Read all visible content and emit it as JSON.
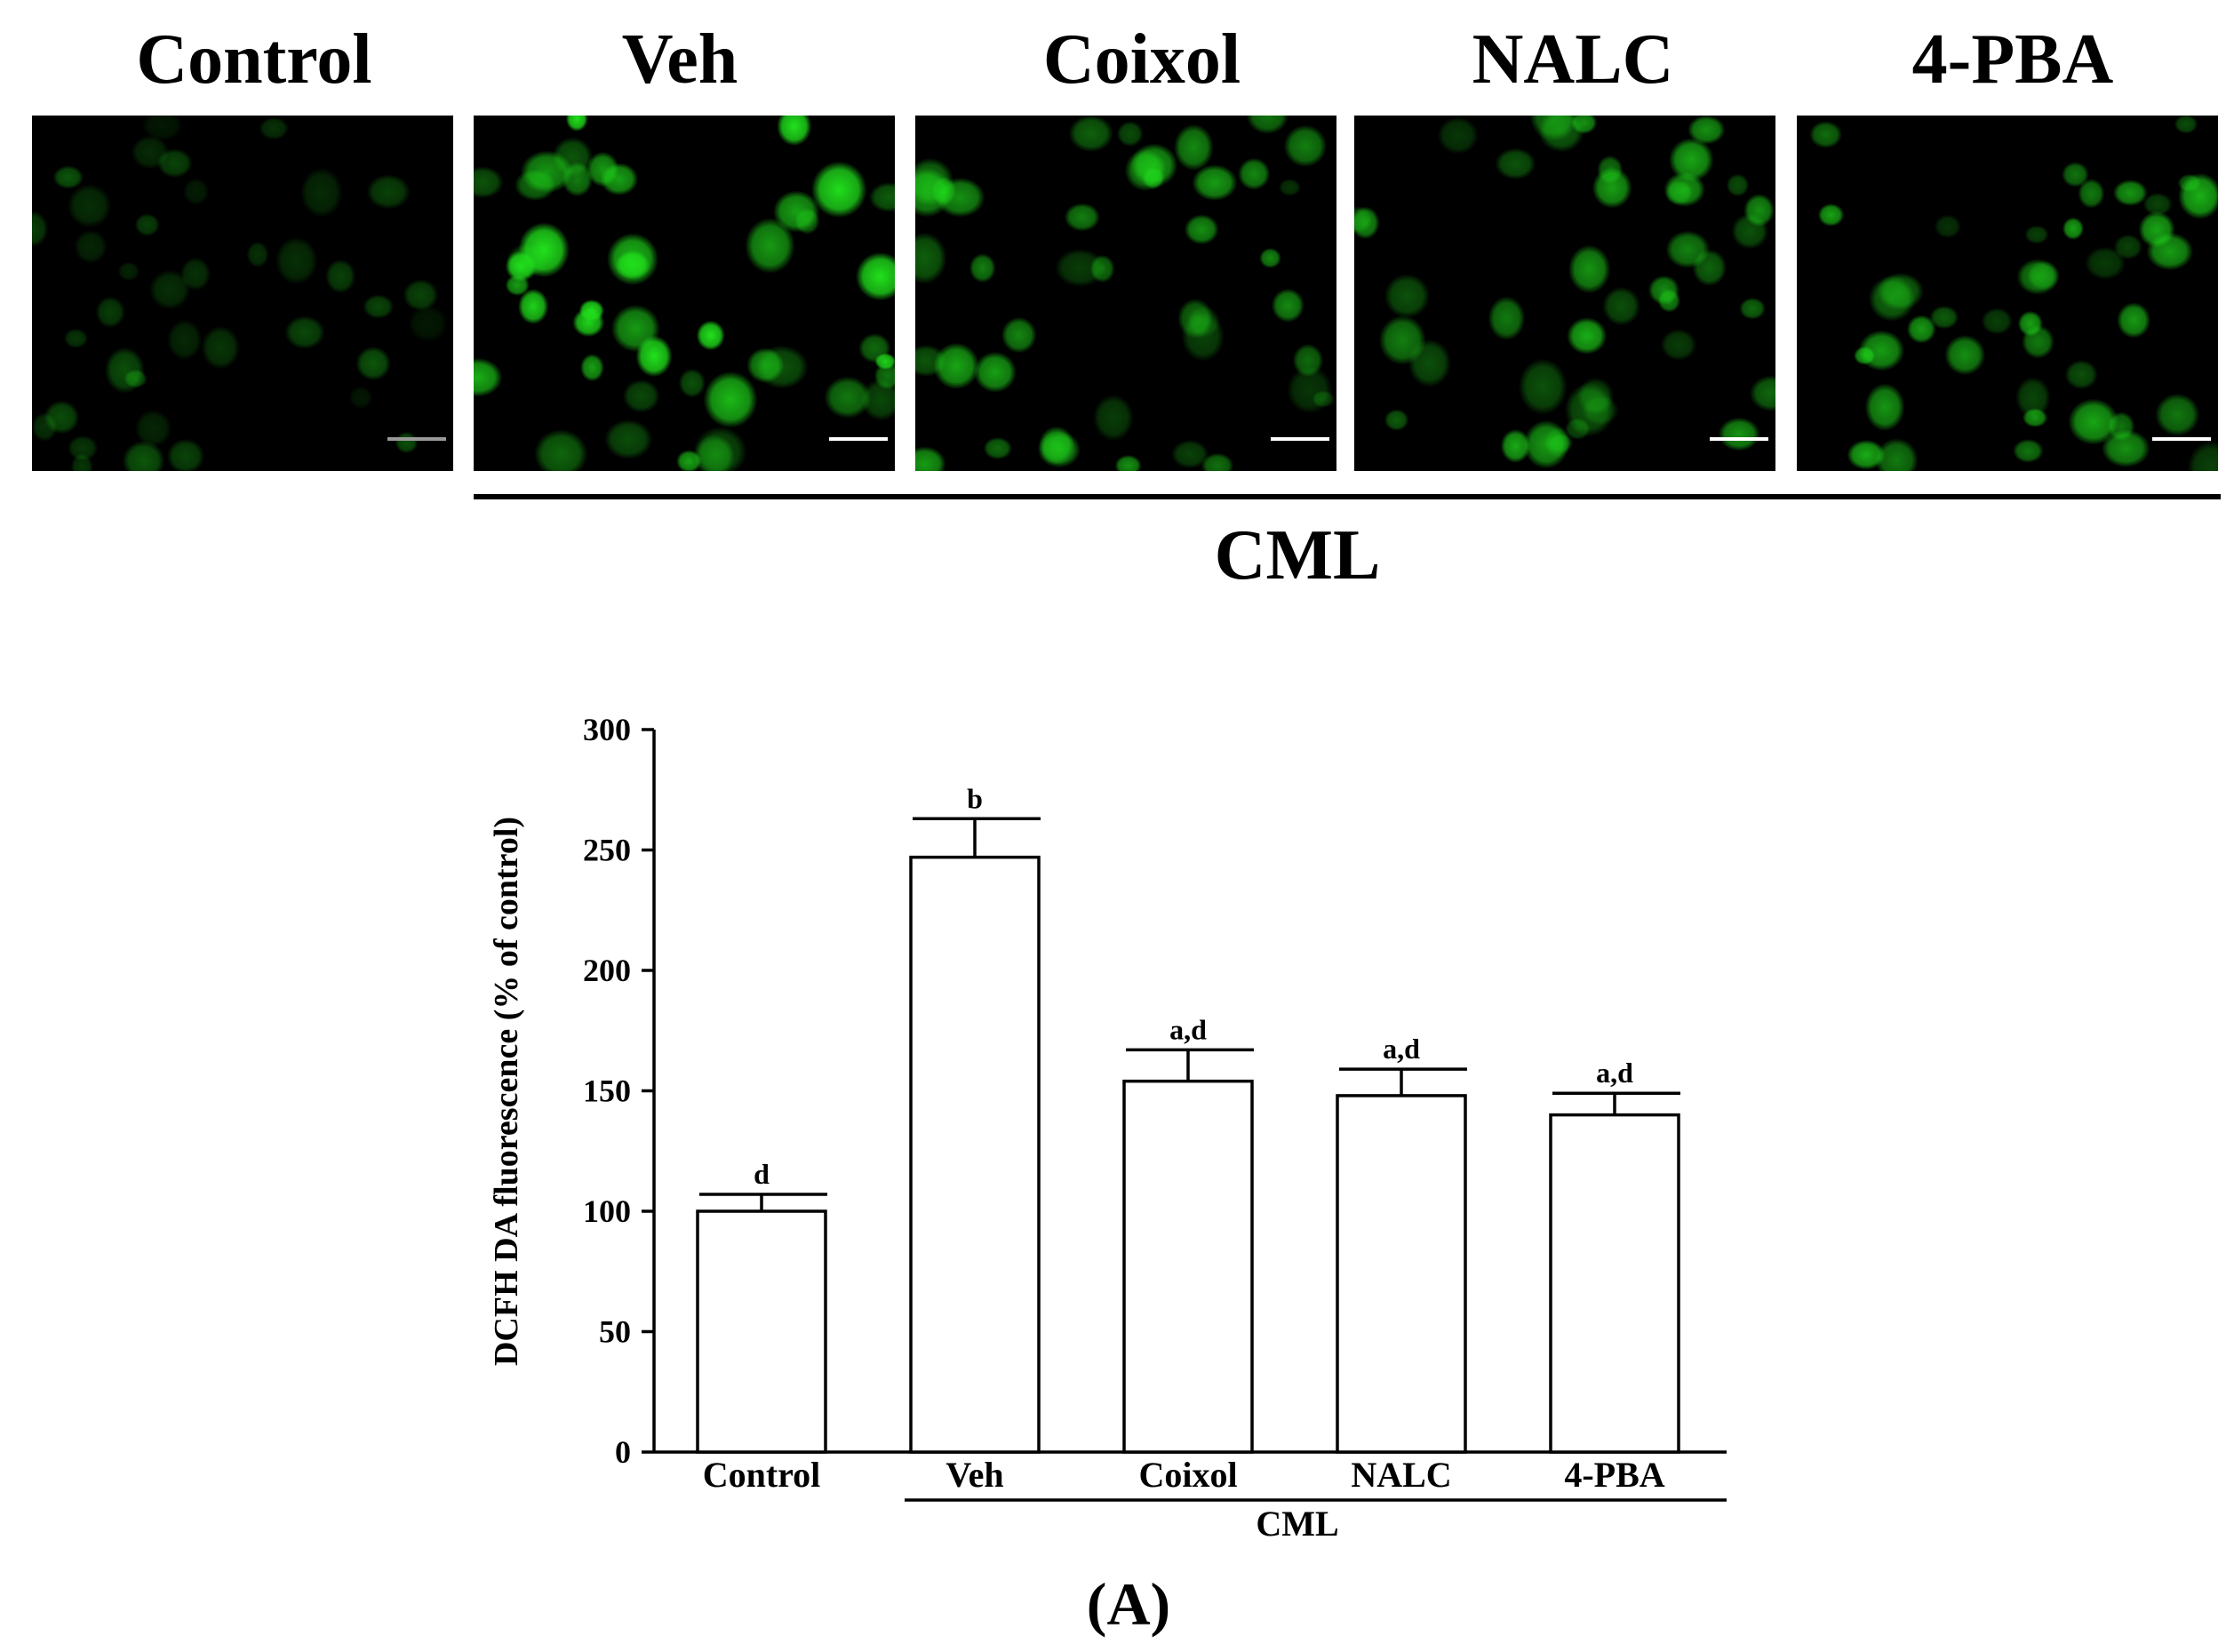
{
  "panels": [
    {
      "label": "Control",
      "brightness": 0.35
    },
    {
      "label": "Veh",
      "brightness": 1.0
    },
    {
      "label": "Coixol",
      "brightness": 0.7
    },
    {
      "label": "NALC",
      "brightness": 0.7
    },
    {
      "label": "4-PBA",
      "brightness": 0.72
    }
  ],
  "group_label": "CML",
  "figure_label": "(A)",
  "colors": {
    "fluorescence": "#21e21c",
    "bar_fill": "#ffffff",
    "axis": "#000000"
  },
  "chart_data": {
    "type": "bar",
    "categories": [
      "Control",
      "Veh",
      "Coixol",
      "NALC",
      "4-PBA"
    ],
    "values": [
      100,
      247,
      154,
      148,
      140
    ],
    "errors": [
      7,
      16,
      13,
      11,
      9
    ],
    "significance": [
      "d",
      "b",
      "a,d",
      "a,d",
      "a,d"
    ],
    "ylabel": "DCFH DA fluorescence (% of control)",
    "yticks": [
      0,
      50,
      100,
      150,
      200,
      250,
      300
    ],
    "ylim": [
      0,
      300
    ],
    "group_label": "CML",
    "grid": false
  }
}
